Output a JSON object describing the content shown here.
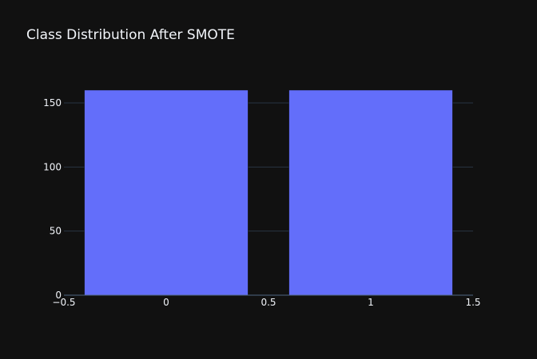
{
  "chart_data": {
    "type": "bar",
    "title": "Class Distribution After SMOTE",
    "x": [
      0,
      1
    ],
    "values": [
      160,
      160
    ],
    "bar_width": 0.8,
    "xlim": [
      -0.5,
      1.5
    ],
    "ylim": [
      0,
      160
    ],
    "x_ticks": [
      -0.5,
      0,
      0.5,
      1,
      1.5
    ],
    "x_tick_labels": [
      "−0.5",
      "0",
      "0.5",
      "1",
      "1.5"
    ],
    "y_ticks": [
      0,
      50,
      100,
      150
    ],
    "y_tick_labels": [
      "0",
      "50",
      "100",
      "150"
    ],
    "xlabel": "",
    "ylabel": "",
    "grid": true,
    "legend": false,
    "colors": {
      "background": "#111111",
      "bar": "#636efa",
      "grid": "#283442",
      "axis_line": "#506784",
      "text": "#f2f5fa"
    }
  }
}
